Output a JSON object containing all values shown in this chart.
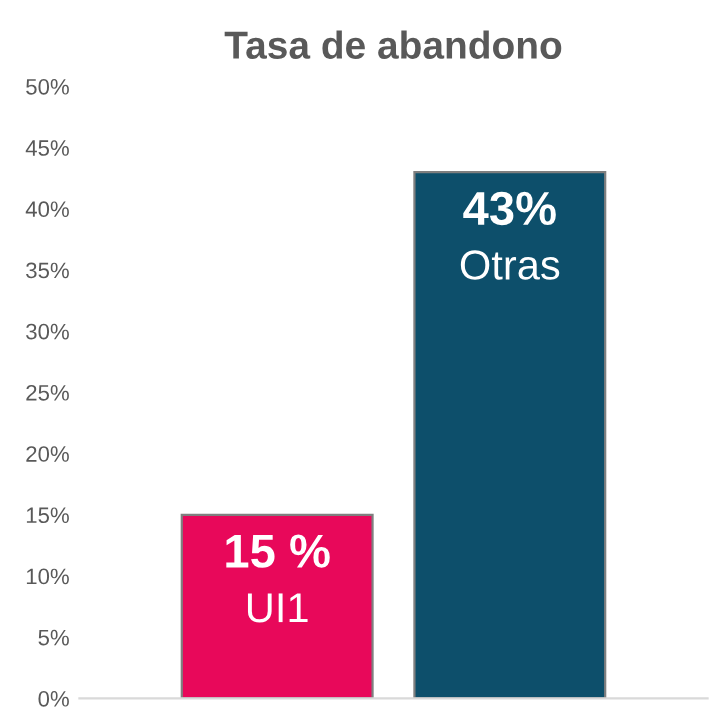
{
  "chart_data": {
    "type": "bar",
    "title": "Tasa de abandono",
    "categories": [
      "UI1",
      "Otras"
    ],
    "values": [
      15,
      43
    ],
    "value_labels": [
      "15 %",
      "43%"
    ],
    "colors": [
      "#e8085a",
      "#0d4f6b"
    ],
    "ylim": [
      0,
      50
    ],
    "yticks": [
      {
        "value": 0,
        "label": "0%"
      },
      {
        "value": 5,
        "label": "5%"
      },
      {
        "value": 10,
        "label": "10%"
      },
      {
        "value": 15,
        "label": "15%"
      },
      {
        "value": 20,
        "label": "20%"
      },
      {
        "value": 25,
        "label": "25%"
      },
      {
        "value": 30,
        "label": "30%"
      },
      {
        "value": 35,
        "label": "35%"
      },
      {
        "value": 40,
        "label": "40%"
      },
      {
        "value": 45,
        "label": "45%"
      },
      {
        "value": 50,
        "label": "50%"
      }
    ],
    "grid": false
  }
}
